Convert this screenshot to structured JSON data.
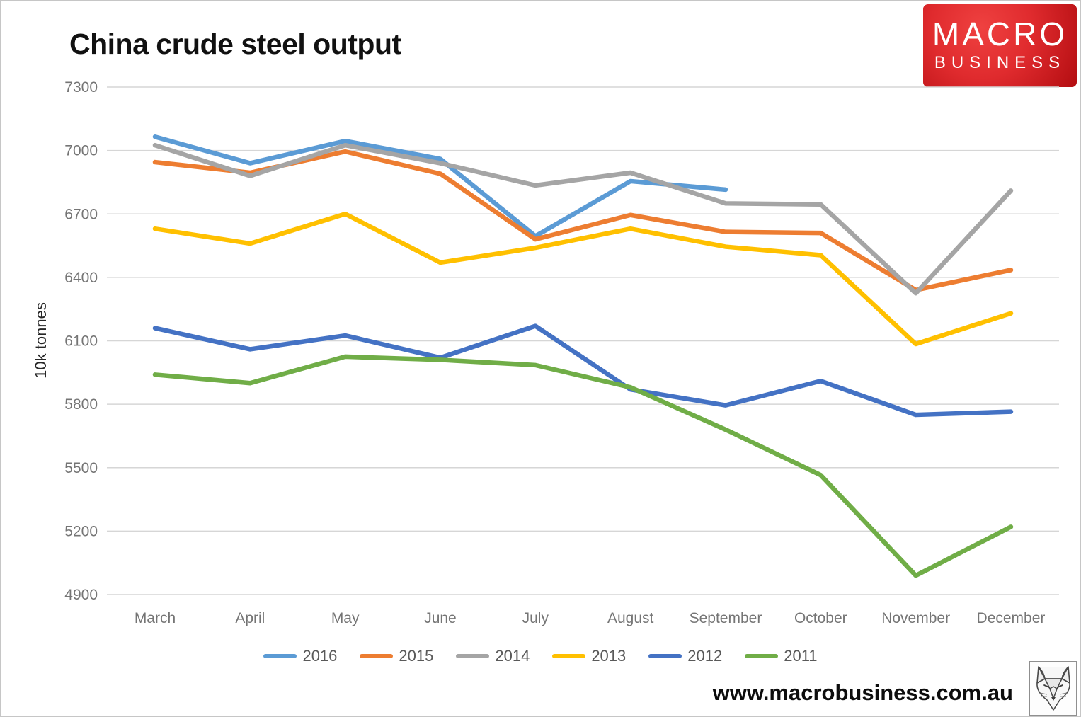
{
  "title": "China crude steel output",
  "logo": {
    "line1": "MACRO",
    "line2": "BUSINESS"
  },
  "footer": {
    "url": "www.macrobusiness.com.au"
  },
  "colors": {
    "grid": "#d6d6d6",
    "tick_text": "#757575",
    "legend_text": "#595959",
    "logo_red": "#cf1317"
  },
  "chart_data": {
    "type": "line",
    "title": "China crude steel output",
    "xlabel": "",
    "ylabel": "10k tonnes",
    "categories": [
      "March",
      "April",
      "May",
      "June",
      "July",
      "August",
      "September",
      "October",
      "November",
      "December"
    ],
    "ylim": [
      4900,
      7300
    ],
    "ytick_step": 300,
    "yticks": [
      7300,
      7000,
      6700,
      6400,
      6100,
      5800,
      5500,
      5200,
      4900
    ],
    "grid": true,
    "legend_position": "bottom",
    "series": [
      {
        "name": "2016",
        "color": "#5B9BD5",
        "values": [
          7065,
          6940,
          7045,
          6960,
          6595,
          6855,
          6815,
          null,
          null,
          null
        ]
      },
      {
        "name": "2015",
        "color": "#ED7D31",
        "values": [
          6945,
          6895,
          6995,
          6890,
          6580,
          6695,
          6615,
          6610,
          6340,
          6435
        ]
      },
      {
        "name": "2014",
        "color": "#A5A5A5",
        "values": [
          7025,
          6880,
          7025,
          6940,
          6835,
          6895,
          6750,
          6745,
          6325,
          6810
        ]
      },
      {
        "name": "2013",
        "color": "#FFC000",
        "values": [
          6630,
          6560,
          6700,
          6470,
          6540,
          6630,
          6545,
          6505,
          6085,
          6230
        ]
      },
      {
        "name": "2012",
        "color": "#4472C4",
        "values": [
          6160,
          6060,
          6125,
          6020,
          6170,
          5870,
          5795,
          5910,
          5750,
          5765
        ]
      },
      {
        "name": "2011",
        "color": "#70AD47",
        "values": [
          5940,
          5900,
          6025,
          6010,
          5985,
          5880,
          5680,
          5465,
          4990,
          5220
        ]
      }
    ]
  }
}
